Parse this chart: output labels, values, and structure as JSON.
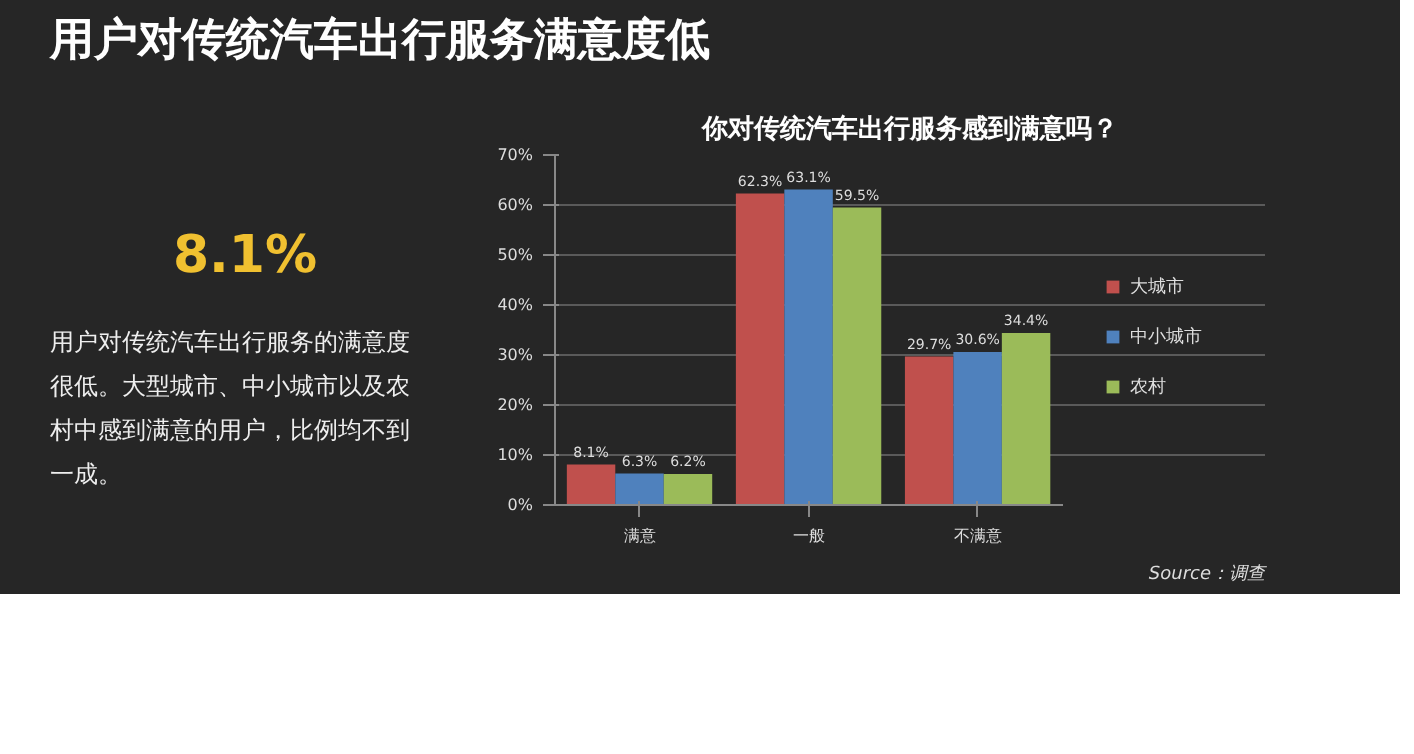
{
  "chart_data": {
    "type": "bar",
    "title": "用户对传统汽车出行服务满意度低",
    "subtitle": "你对传统汽车出行服务感到满意吗？",
    "annotations": [
      "8.1%",
      "用户对传统汽车出行服务的满意度很低。大型城市、中小城市以及农村中感到满意的用户，比例均不到一成。",
      "Source：调查"
    ],
    "categories": [
      "满意",
      "一般",
      "不满意"
    ],
    "series": [
      {
        "name": "大城市",
        "color": "#c0504d",
        "values": [
          8.1,
          62.3,
          29.7
        ],
        "value_labels": [
          "8.1%",
          "62.3%",
          "29.7%"
        ]
      },
      {
        "name": "中小城市",
        "color": "#4f81bd",
        "values": [
          6.3,
          63.1,
          30.6
        ],
        "value_labels": [
          "6.3%",
          "63.1%",
          "30.6%"
        ]
      },
      {
        "name": "农村",
        "color": "#9bbb59",
        "values": [
          6.2,
          59.5,
          34.4
        ],
        "value_labels": [
          "6.2%",
          "59.5%",
          "34.4%"
        ]
      }
    ],
    "ylim": [
      0,
      70
    ],
    "yticks": [
      {
        "value": 0,
        "label": "0%"
      },
      {
        "value": 10,
        "label": "10%"
      },
      {
        "value": 20,
        "label": "20%"
      },
      {
        "value": 30,
        "label": "30%"
      },
      {
        "value": 40,
        "label": "40%"
      },
      {
        "value": 50,
        "label": "50%"
      },
      {
        "value": 60,
        "label": "60%"
      },
      {
        "value": 70,
        "label": "70%"
      }
    ],
    "grid": "y",
    "legend": "right"
  }
}
